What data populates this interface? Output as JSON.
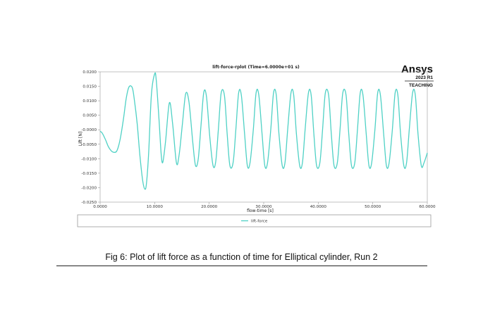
{
  "brand": {
    "name": "Ansys",
    "version": "2023 R1",
    "edition": "TEACHING"
  },
  "caption": "Fig 6: Plot of lift force as a function of time for Elliptical cylinder, Run 2",
  "chart_data": {
    "type": "line",
    "title": "lift-force-rplot (Time=6.0000e+01 s)",
    "xlabel": "flow-time [s]",
    "ylabel": "Lift [N]",
    "xlim": [
      0,
      60
    ],
    "ylim": [
      -0.025,
      0.02
    ],
    "x_ticks": [
      "0.0000",
      "10.0000",
      "20.0000",
      "30.0000",
      "40.0000",
      "50.0000",
      "60.0000"
    ],
    "y_ticks": [
      "0.0200",
      "0.0150",
      "0.0100",
      "0.0050",
      "-0.0000",
      "-0.0050",
      "-0.0100",
      "-0.0150",
      "-0.0200",
      "-0.0250"
    ],
    "legend_position": "bottom",
    "line_color": "#4fd1c5",
    "series": [
      {
        "name": "lift-force",
        "x": [
          0,
          0.4,
          1,
          1.5,
          2,
          2.5,
          3,
          3.4,
          3.8,
          4.3,
          4.8,
          5.3,
          5.9,
          6.3,
          6.8,
          7.3,
          7.8,
          8.2,
          8.5,
          8.9,
          9.4,
          10.0,
          10.3,
          10.8,
          11.2,
          11.5,
          12.0,
          12.7,
          13.3,
          14.0,
          14.5,
          15.1,
          15.7,
          16.3,
          17.0,
          17.5,
          18.0,
          18.5,
          19.0,
          19.5,
          20.1,
          20.7,
          21.2,
          21.7,
          22.2,
          22.8,
          23.3,
          23.8,
          24.4,
          24.9,
          25.4,
          25.9,
          26.5,
          27.0,
          27.5,
          28.1,
          28.6,
          29.1,
          29.7,
          30.2,
          30.7,
          31.3,
          31.8,
          32.3,
          32.8,
          33.4,
          33.9,
          34.4,
          35.0,
          35.5,
          36.0,
          36.6,
          37.1,
          37.6,
          38.2,
          38.7,
          39.2,
          39.7,
          40.3,
          40.8,
          41.3,
          41.9,
          42.4,
          42.9,
          43.5,
          44.0,
          44.5,
          45.1,
          45.6,
          46.1,
          46.7,
          47.2,
          47.7,
          48.2,
          48.8,
          49.3,
          49.8,
          50.4,
          50.9,
          51.4,
          52.0,
          52.5,
          53.0,
          53.6,
          54.1,
          54.6,
          55.1,
          55.7,
          56.2,
          56.7,
          57.3,
          57.8,
          58.3,
          58.9,
          59.4,
          60.0
        ],
        "y": [
          -0.0005,
          -0.0012,
          -0.0035,
          -0.0058,
          -0.0072,
          -0.0078,
          -0.0075,
          -0.0055,
          -0.002,
          0.004,
          0.011,
          0.0148,
          0.0145,
          0.01,
          0.002,
          -0.009,
          -0.0175,
          -0.0205,
          -0.0185,
          -0.008,
          0.012,
          0.0193,
          0.017,
          0.0035,
          -0.0085,
          -0.0112,
          -0.004,
          0.0093,
          0.002,
          -0.0115,
          -0.0085,
          0.0022,
          0.0125,
          0.0095,
          -0.0045,
          -0.0124,
          -0.01,
          0.0015,
          0.0128,
          0.0115,
          -0.0022,
          -0.0123,
          -0.011,
          0.0005,
          0.0127,
          0.0118,
          -0.0015,
          -0.0124,
          -0.0112,
          0.0003,
          0.0127,
          0.0119,
          -0.0016,
          -0.0124,
          -0.0113,
          0.0002,
          0.0127,
          0.012,
          -0.0015,
          -0.0124,
          -0.0114,
          0.0002,
          0.0127,
          0.012,
          -0.0015,
          -0.0124,
          -0.0114,
          0.0002,
          0.0127,
          0.012,
          -0.0015,
          -0.0124,
          -0.0114,
          0.0002,
          0.0127,
          0.012,
          -0.0015,
          -0.0124,
          -0.0114,
          0.0002,
          0.0127,
          0.012,
          -0.0015,
          -0.0124,
          -0.0114,
          0.0002,
          0.0127,
          0.012,
          -0.0015,
          -0.0124,
          -0.0114,
          0.0002,
          0.0127,
          0.012,
          -0.0015,
          -0.0124,
          -0.0114,
          0.0002,
          0.0127,
          0.012,
          -0.0015,
          -0.0124,
          -0.0114,
          0.0002,
          0.0127,
          0.012,
          -0.0015,
          -0.0124,
          -0.0114,
          0.0002,
          0.0127,
          0.012,
          -0.0015,
          -0.0124,
          -0.0114,
          -0.008
        ]
      }
    ]
  }
}
